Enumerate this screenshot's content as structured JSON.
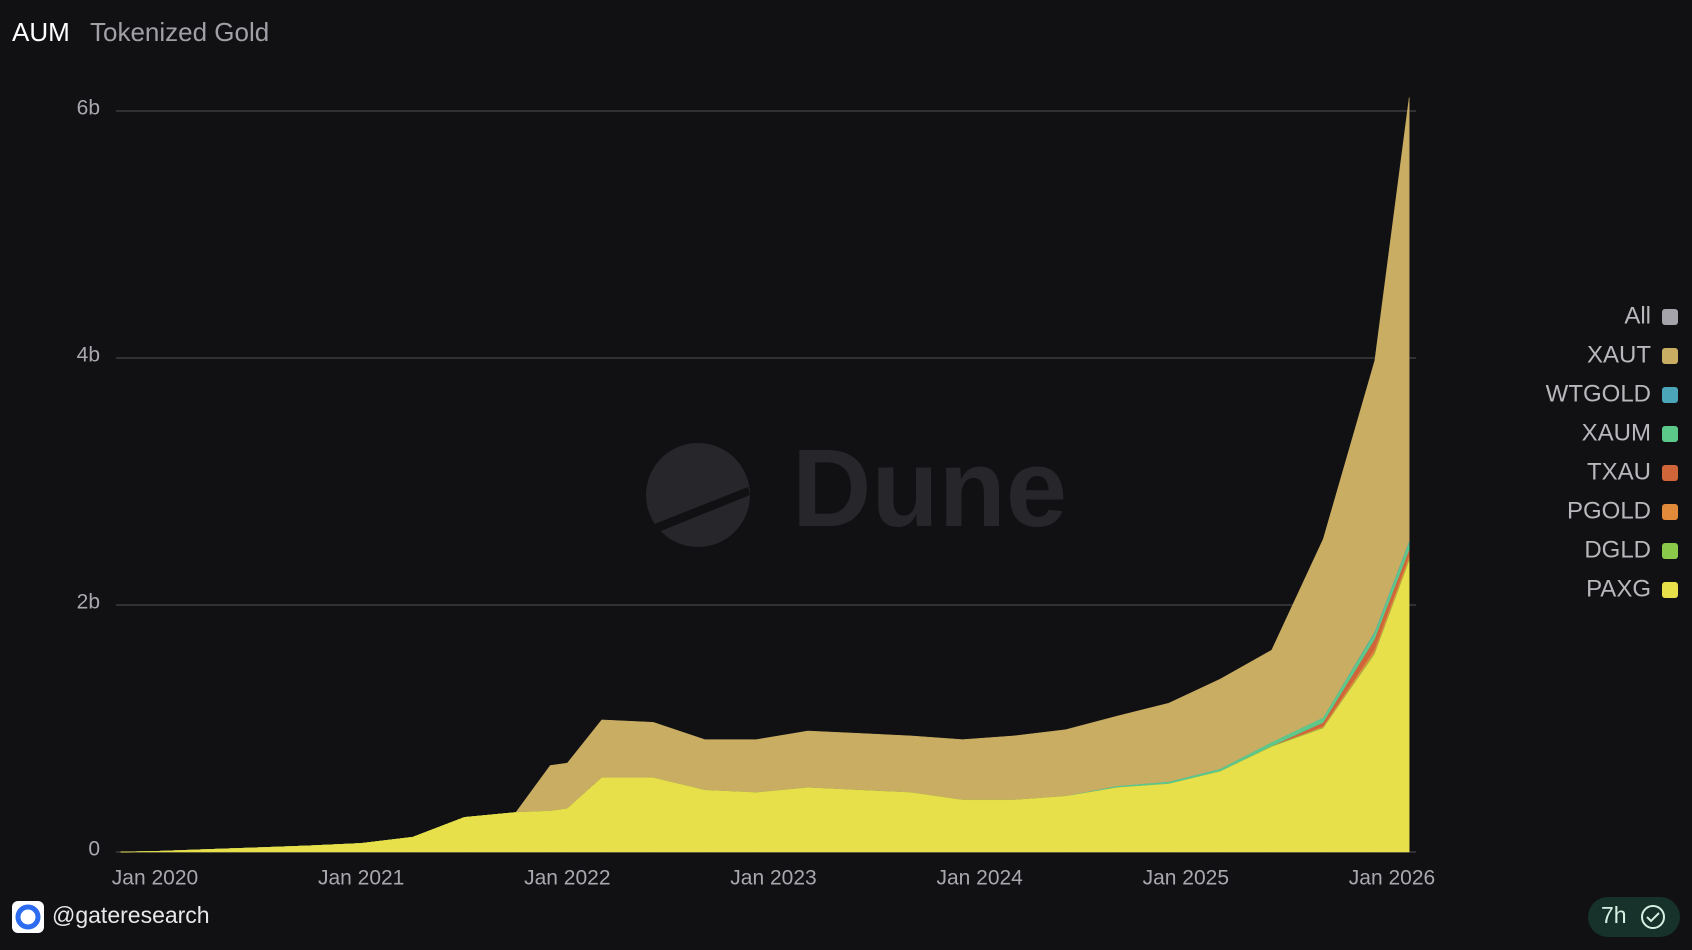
{
  "chart_data": {
    "type": "stacked-area",
    "title": "AUM",
    "subtitle": "Tokenized Gold",
    "watermark": "Dune",
    "author": "@gateresearch",
    "age": "7h",
    "x": [
      "2019-11",
      "2020-01",
      "2020-04",
      "2020-07",
      "2020-10",
      "2021-01",
      "2021-04",
      "2021-07",
      "2021-10",
      "2021-12",
      "2022-01",
      "2022-03",
      "2022-06",
      "2022-09",
      "2022-12",
      "2023-03",
      "2023-06",
      "2023-09",
      "2023-12",
      "2024-03",
      "2024-06",
      "2024-09",
      "2024-12",
      "2025-03",
      "2025-06",
      "2025-09",
      "2025-12",
      "2026-02"
    ],
    "series": [
      {
        "name": "All",
        "color": "#a4a4aa",
        "values": [
          null,
          null,
          null,
          null,
          null,
          null,
          null,
          null,
          null,
          null,
          null,
          null,
          null,
          null,
          null,
          null,
          null,
          null,
          null,
          null,
          null,
          null,
          null,
          null,
          null,
          null,
          null,
          null
        ]
      },
      {
        "name": "XAUT",
        "color": "#c9ad62",
        "values": [
          0,
          0,
          0,
          0,
          0,
          0,
          0,
          0,
          0,
          0.37,
          0.37,
          0.47,
          0.45,
          0.41,
          0.43,
          0.46,
          0.46,
          0.46,
          0.49,
          0.52,
          0.54,
          0.57,
          0.64,
          0.73,
          0.75,
          1.45,
          2.2,
          3.6
        ]
      },
      {
        "name": "WTGOLD",
        "color": "#4aa6b8",
        "values": [
          0,
          0,
          0,
          0,
          0,
          0,
          0,
          0,
          0,
          0,
          0,
          0,
          0,
          0,
          0,
          0,
          0,
          0,
          0,
          0,
          0,
          0,
          0,
          0,
          0,
          0,
          0.01,
          0.01
        ]
      },
      {
        "name": "XAUM",
        "color": "#5cc98a",
        "values": [
          0,
          0,
          0,
          0,
          0,
          0,
          0,
          0,
          0,
          0,
          0,
          0,
          0,
          0,
          0,
          0,
          0,
          0,
          0,
          0,
          0,
          0.01,
          0.015,
          0.02,
          0.03,
          0.04,
          0.05,
          0.06
        ]
      },
      {
        "name": "TXAU",
        "color": "#d0653a",
        "values": [
          0,
          0,
          0,
          0,
          0,
          0,
          0,
          0,
          0,
          0,
          0,
          0,
          0,
          0,
          0,
          0,
          0,
          0,
          0,
          0,
          0,
          0,
          0,
          0,
          0,
          0.03,
          0.08,
          0.05
        ]
      },
      {
        "name": "PGOLD",
        "color": "#e08a3a",
        "values": [
          0,
          0,
          0,
          0,
          0,
          0,
          0,
          0,
          0,
          0,
          0,
          0,
          0,
          0,
          0,
          0,
          0,
          0,
          0,
          0,
          0,
          0,
          0,
          0,
          0,
          0.01,
          0.03,
          0.03
        ]
      },
      {
        "name": "DGLD",
        "color": "#8bc94a",
        "values": [
          0,
          0,
          0,
          0,
          0,
          0,
          0,
          0,
          0,
          0,
          0,
          0,
          0,
          0,
          0,
          0,
          0,
          0,
          0,
          0,
          0,
          0,
          0,
          0,
          0.005,
          0.005,
          0.01,
          0.01
        ]
      },
      {
        "name": "PAXG",
        "color": "#e8e04a",
        "values": [
          0,
          0.005,
          0.02,
          0.035,
          0.05,
          0.07,
          0.12,
          0.28,
          0.32,
          0.33,
          0.35,
          0.6,
          0.6,
          0.5,
          0.48,
          0.52,
          0.5,
          0.48,
          0.42,
          0.42,
          0.45,
          0.52,
          0.55,
          0.65,
          0.85,
          1.0,
          1.6,
          2.35
        ]
      }
    ],
    "ylim": [
      0,
      6
    ],
    "yticks": [
      0,
      {
        "value": 2,
        "label": "2b"
      },
      {
        "value": 4,
        "label": "4b"
      },
      {
        "value": 6,
        "label": "6b"
      }
    ],
    "xticks": [
      {
        "value": "2020-01",
        "label": "Jan 2020"
      },
      {
        "value": "2021-01",
        "label": "Jan 2021"
      },
      {
        "value": "2022-01",
        "label": "Jan 2022"
      },
      {
        "value": "2023-01",
        "label": "Jan 2023"
      },
      {
        "value": "2024-01",
        "label": "Jan 2024"
      },
      {
        "value": "2025-01",
        "label": "Jan 2025"
      },
      {
        "value": "2026-01",
        "label": "Jan 2026"
      }
    ],
    "grid": true
  }
}
